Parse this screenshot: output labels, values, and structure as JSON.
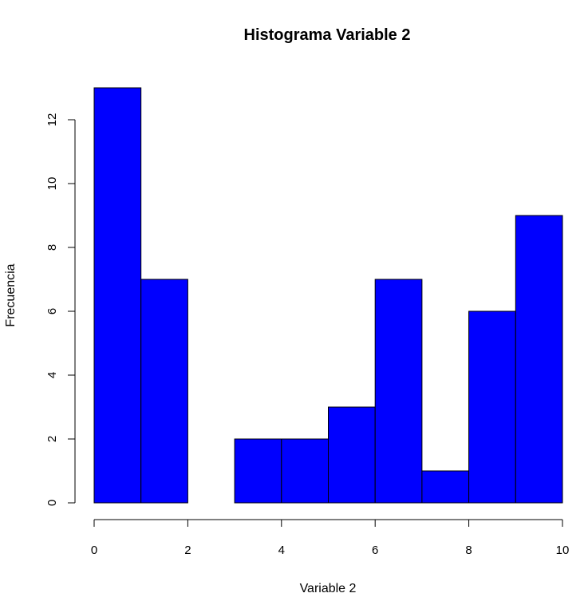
{
  "chart_data": {
    "type": "bar",
    "title": "Histograma Variable 2",
    "xlabel": "Variable 2",
    "ylabel": "Frecuencia",
    "bins": [
      {
        "x0": 0,
        "x1": 1,
        "count": 13
      },
      {
        "x0": 1,
        "x1": 2,
        "count": 7
      },
      {
        "x0": 2,
        "x1": 3,
        "count": 0
      },
      {
        "x0": 3,
        "x1": 4,
        "count": 2
      },
      {
        "x0": 4,
        "x1": 5,
        "count": 2
      },
      {
        "x0": 5,
        "x1": 6,
        "count": 3
      },
      {
        "x0": 6,
        "x1": 7,
        "count": 7
      },
      {
        "x0": 7,
        "x1": 8,
        "count": 1
      },
      {
        "x0": 8,
        "x1": 9,
        "count": 6
      },
      {
        "x0": 9,
        "x1": 10,
        "count": 9
      }
    ],
    "xlim": [
      0,
      10
    ],
    "ylim": [
      0,
      13
    ],
    "x_ticks": [
      "0",
      "2",
      "4",
      "6",
      "8",
      "10"
    ],
    "y_ticks": [
      "0",
      "2",
      "4",
      "6",
      "8",
      "10",
      "12"
    ],
    "bar_color": "#0000ff",
    "grid": false,
    "legend": "none"
  }
}
